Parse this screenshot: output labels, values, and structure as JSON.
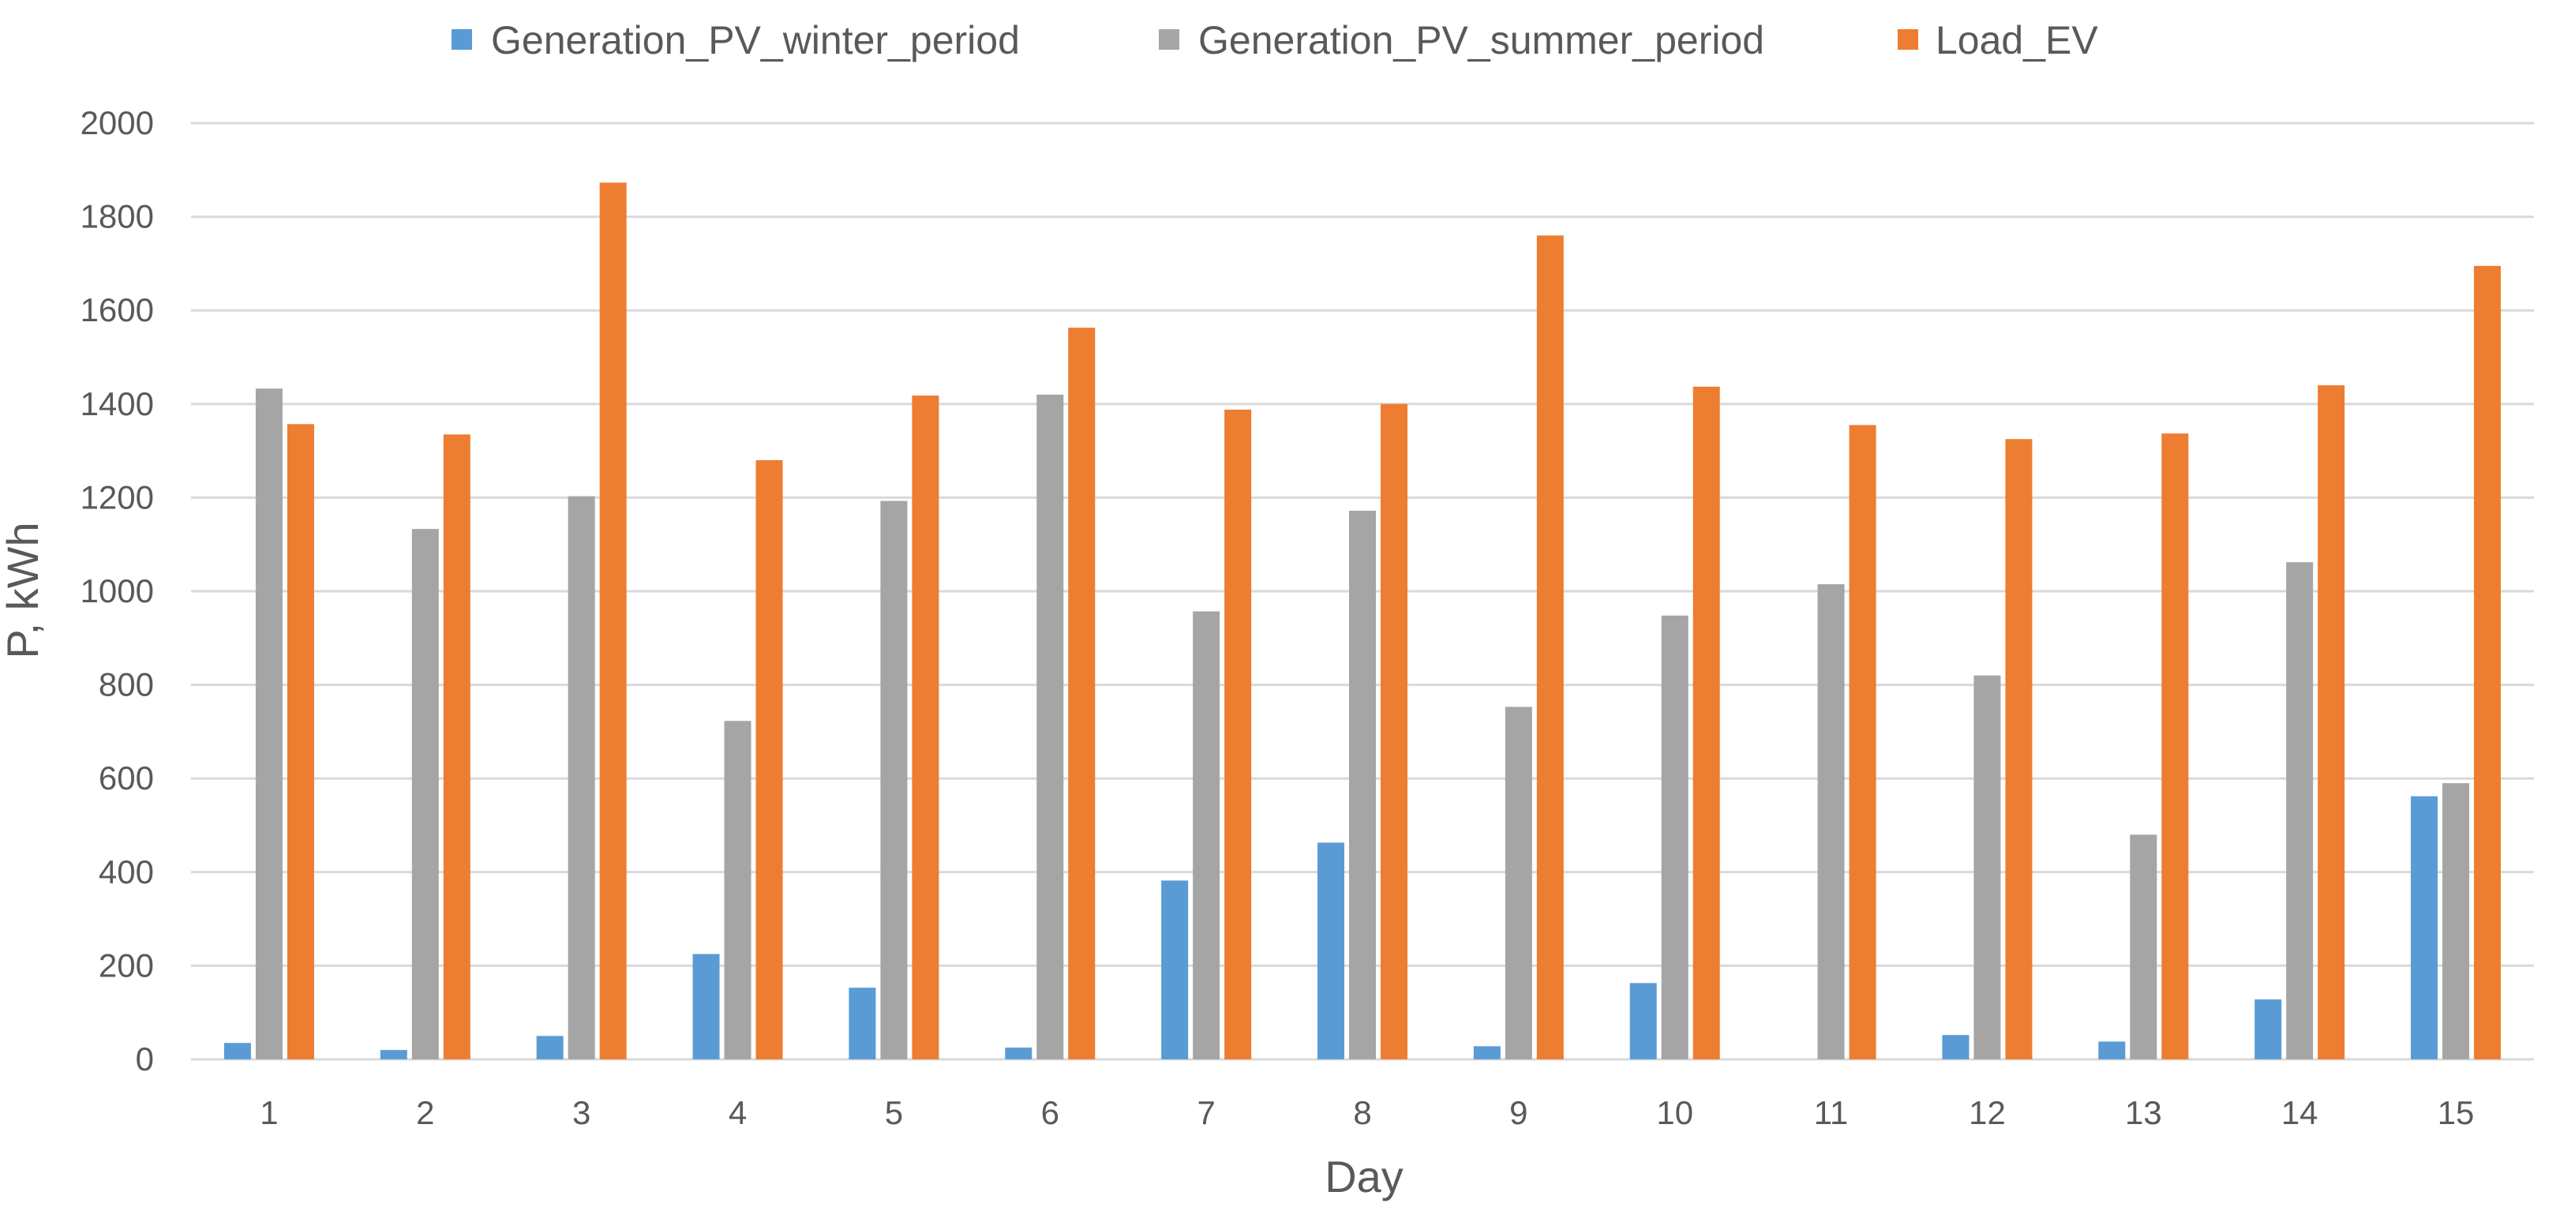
{
  "chart_data": {
    "type": "bar",
    "title": "",
    "xlabel": "Day",
    "ylabel": "P, kWh",
    "ylim": [
      0,
      2000
    ],
    "yticks": [
      0,
      200,
      400,
      600,
      800,
      1000,
      1200,
      1400,
      1600,
      1800,
      2000
    ],
    "grid": true,
    "legend_position": "top",
    "categories": [
      "1",
      "2",
      "3",
      "4",
      "5",
      "6",
      "7",
      "8",
      "9",
      "10",
      "11",
      "12",
      "13",
      "14",
      "15"
    ],
    "series": [
      {
        "name": "Generation_PV_winter_period",
        "color": "#5b9bd5",
        "values": [
          35,
          20,
          50,
          225,
          153,
          25,
          382,
          463,
          28,
          163,
          0,
          52,
          38,
          128,
          562
        ]
      },
      {
        "name": "Generation_PV_summer_period",
        "color": "#a5a5a5",
        "values": [
          1433,
          1133,
          1203,
          723,
          1193,
          1420,
          957,
          1172,
          753,
          948,
          1015,
          820,
          480,
          1062,
          590
        ]
      },
      {
        "name": "Load_EV",
        "color": "#ed7d31",
        "values": [
          1357,
          1335,
          1873,
          1280,
          1418,
          1563,
          1388,
          1400,
          1760,
          1437,
          1355,
          1325,
          1337,
          1440,
          1695
        ]
      }
    ]
  }
}
